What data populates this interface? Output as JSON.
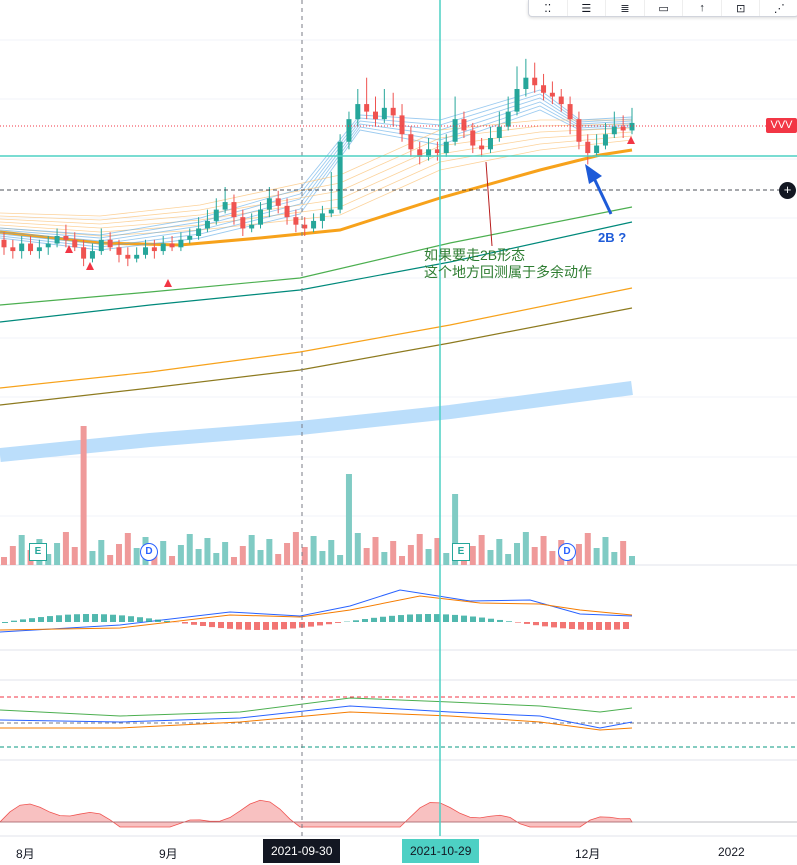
{
  "toolbar": {
    "items": [
      {
        "icon": "dots-icon",
        "glyph": "⁚⁚"
      },
      {
        "icon": "horizontal-line-icon",
        "glyph": "☰"
      },
      {
        "icon": "fib-lines-icon",
        "glyph": "≣"
      },
      {
        "icon": "rectangle-icon",
        "glyph": "▭"
      },
      {
        "icon": "arrow-up-icon",
        "glyph": "↑"
      },
      {
        "icon": "price-range-icon",
        "glyph": "⊡"
      },
      {
        "icon": "pitchfork-icon",
        "glyph": "⋰"
      }
    ]
  },
  "price_tag": "VVV",
  "plus_button": "+",
  "annotation": {
    "line1": "如果要走2B形态",
    "line2": "这个地方回测属于多余动作",
    "tag_2b": "2B ?"
  },
  "x_axis": {
    "labels": [
      "8月",
      "9月",
      "12月",
      "2022"
    ],
    "crosshair_date": "2021-09-30",
    "highlight_date": "2021-10-29"
  },
  "events": [
    {
      "type": "E",
      "label": "E"
    },
    {
      "type": "D",
      "label": "D"
    },
    {
      "type": "E",
      "label": "E"
    },
    {
      "type": "D",
      "label": "D"
    }
  ],
  "colors": {
    "up": "#26a69a",
    "down": "#ef5350",
    "ma_orange": "#f7a21b",
    "ma_green": "#4caf50",
    "ma_teal": "#00897b",
    "ma_olive": "#8d7a1f",
    "ribbon_blue": "#bbdefb",
    "crosshair_teal": "#4dd0c4",
    "price_line": "#f23645",
    "annotation_green": "#2e7d32",
    "arrow_blue": "#1e5bd8"
  },
  "chart_data": {
    "type": "candlestick",
    "note_series": "Synthetic reconstruction of the visible price shape; values are relative price levels read from the vertical axis position.",
    "candles": [
      [
        52,
        50,
        54,
        48
      ],
      [
        50,
        49,
        52,
        47
      ],
      [
        49,
        51,
        53,
        47
      ],
      [
        51,
        49,
        53,
        48
      ],
      [
        49,
        50,
        52,
        47
      ],
      [
        50,
        51,
        53,
        48
      ],
      [
        51,
        53,
        55,
        50
      ],
      [
        53,
        52,
        56,
        50
      ],
      [
        52,
        50,
        54,
        49
      ],
      [
        50,
        47,
        52,
        45
      ],
      [
        47,
        49,
        51,
        46
      ],
      [
        49,
        52,
        55,
        48
      ],
      [
        52,
        50,
        54,
        49
      ],
      [
        50,
        48,
        52,
        46
      ],
      [
        48,
        47,
        50,
        45
      ],
      [
        47,
        48,
        50,
        46
      ],
      [
        48,
        50,
        52,
        47
      ],
      [
        50,
        49,
        52,
        47
      ],
      [
        49,
        51,
        53,
        48
      ],
      [
        51,
        50,
        53,
        49
      ],
      [
        50,
        52,
        54,
        49
      ],
      [
        52,
        53,
        55,
        51
      ],
      [
        53,
        55,
        58,
        52
      ],
      [
        55,
        57,
        60,
        54
      ],
      [
        57,
        60,
        63,
        56
      ],
      [
        60,
        62,
        66,
        59
      ],
      [
        62,
        58,
        64,
        56
      ],
      [
        58,
        55,
        60,
        53
      ],
      [
        55,
        56,
        59,
        54
      ],
      [
        56,
        60,
        62,
        55
      ],
      [
        60,
        63,
        66,
        58
      ],
      [
        63,
        61,
        65,
        59
      ],
      [
        61,
        58,
        63,
        56
      ],
      [
        58,
        56,
        60,
        54
      ],
      [
        56,
        55,
        58,
        53
      ],
      [
        55,
        57,
        59,
        54
      ],
      [
        57,
        59,
        61,
        55
      ],
      [
        59,
        60,
        70,
        58
      ],
      [
        60,
        78,
        80,
        59
      ],
      [
        78,
        84,
        86,
        76
      ],
      [
        84,
        88,
        92,
        82
      ],
      [
        88,
        86,
        95,
        84
      ],
      [
        86,
        84,
        90,
        82
      ],
      [
        84,
        87,
        92,
        83
      ],
      [
        87,
        85,
        91,
        82
      ],
      [
        85,
        80,
        88,
        78
      ],
      [
        80,
        76,
        82,
        74
      ],
      [
        76,
        74,
        78,
        72
      ],
      [
        74,
        76,
        79,
        73
      ],
      [
        76,
        75,
        78,
        73
      ],
      [
        75,
        78,
        80,
        74
      ],
      [
        78,
        84,
        90,
        77
      ],
      [
        84,
        81,
        86,
        79
      ],
      [
        81,
        77,
        83,
        75
      ],
      [
        77,
        76,
        79,
        74
      ],
      [
        76,
        79,
        82,
        75
      ],
      [
        79,
        82,
        86,
        78
      ],
      [
        82,
        86,
        90,
        81
      ],
      [
        86,
        92,
        98,
        85
      ],
      [
        92,
        95,
        100,
        90
      ],
      [
        95,
        93,
        99,
        91
      ],
      [
        93,
        91,
        96,
        89
      ],
      [
        91,
        90,
        94,
        88
      ],
      [
        90,
        88,
        92,
        86
      ],
      [
        88,
        84,
        90,
        80
      ],
      [
        84,
        78,
        86,
        76
      ],
      [
        78,
        75,
        80,
        72
      ],
      [
        75,
        77,
        80,
        74
      ],
      [
        77,
        80,
        83,
        76
      ],
      [
        80,
        82,
        86,
        79
      ],
      [
        82,
        81,
        85,
        79
      ],
      [
        81,
        83,
        87,
        80
      ]
    ]
  }
}
